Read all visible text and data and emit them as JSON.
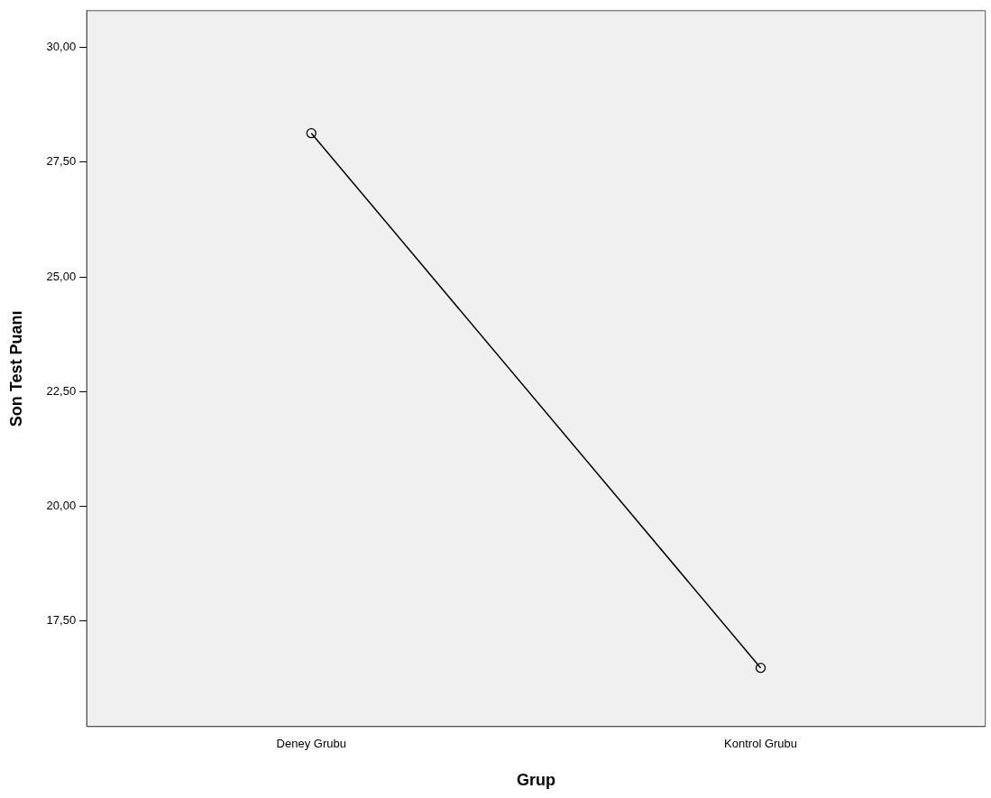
{
  "chart_data": {
    "type": "line",
    "xlabel": "Grup",
    "ylabel": "Son Test Puanı",
    "categories": [
      "Deney Grubu",
      "Kontrol Grubu"
    ],
    "series": [
      {
        "color": "#000000",
        "values": [
          28.13,
          16.48
        ]
      }
    ],
    "ylim": [
      15.2,
      30.8
    ],
    "yticks": [
      {
        "value": 17.5,
        "label": "17,50"
      },
      {
        "value": 20,
        "label": "20,00"
      },
      {
        "value": 22.5,
        "label": "22,50"
      },
      {
        "value": 25,
        "label": "25,00"
      },
      {
        "value": 27.5,
        "label": "27,50"
      },
      {
        "value": 30,
        "label": "30,00"
      }
    ],
    "grid": false,
    "legend": false,
    "marker": "circle",
    "line_style": "solid"
  }
}
